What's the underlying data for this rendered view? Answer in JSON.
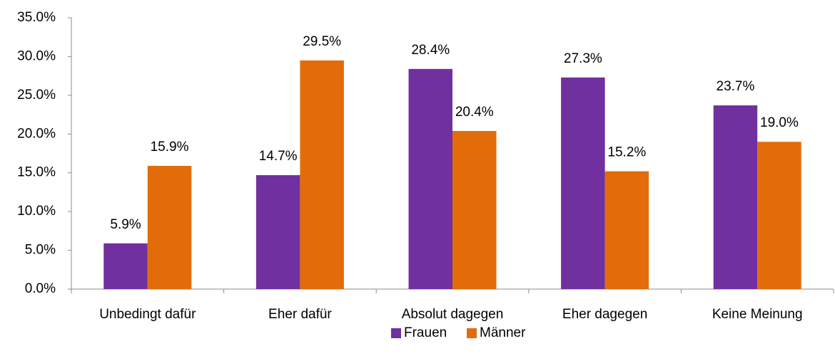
{
  "chart_data": {
    "type": "bar",
    "categories": [
      "Unbedingt dafür",
      "Eher dafür",
      "Absolut dagegen",
      "Eher dagegen",
      "Keine Meinung"
    ],
    "series": [
      {
        "name": "Frauen",
        "color": "#7030a0",
        "values": [
          5.9,
          14.7,
          28.4,
          27.3,
          23.7
        ],
        "value_labels": [
          "5.9%",
          "14.7%",
          "28.4%",
          "27.3%",
          "23.7%"
        ]
      },
      {
        "name": "Männer",
        "color": "#e36c0a",
        "values": [
          15.9,
          29.5,
          20.4,
          15.2,
          19.0
        ],
        "value_labels": [
          "15.9%",
          "29.5%",
          "20.4%",
          "15.2%",
          "19.0%"
        ]
      }
    ],
    "ylim": [
      0,
      35
    ],
    "yticks": [
      {
        "value": 0,
        "label": "0.0%"
      },
      {
        "value": 5,
        "label": "5.0%"
      },
      {
        "value": 10,
        "label": "10.0%"
      },
      {
        "value": 15,
        "label": "15.0%"
      },
      {
        "value": 20,
        "label": "20.0%"
      },
      {
        "value": 25,
        "label": "25.0%"
      },
      {
        "value": 30,
        "label": "30.0%"
      },
      {
        "value": 35,
        "label": "35.0%"
      }
    ],
    "legend": "bottom"
  }
}
